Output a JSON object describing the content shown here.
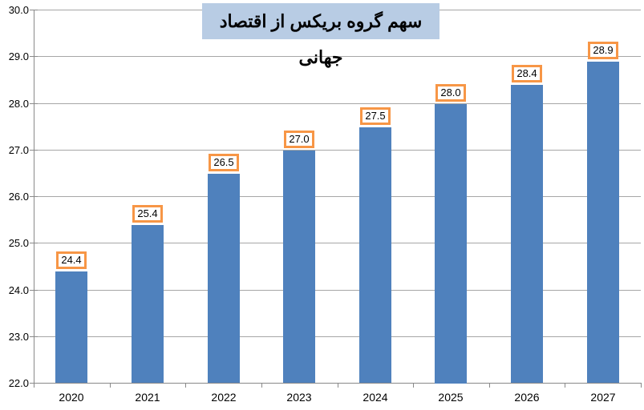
{
  "chart_data": {
    "type": "bar",
    "title": "سهم گروه بریکس از اقتصاد جهانی",
    "categories": [
      "2020",
      "2021",
      "2022",
      "2023",
      "2024",
      "2025",
      "2026",
      "2027"
    ],
    "values": [
      24.4,
      25.4,
      26.5,
      27.0,
      27.5,
      28.0,
      28.4,
      28.9
    ],
    "data_labels": [
      "24.4",
      "25.4",
      "26.5",
      "27.0",
      "27.5",
      "28.0",
      "28.4",
      "28.9"
    ],
    "xlabel": "",
    "ylabel": "",
    "ylim": [
      22.0,
      30.0
    ],
    "ytick_step": 1.0,
    "ytick_labels": [
      "22.0",
      "23.0",
      "24.0",
      "25.0",
      "26.0",
      "27.0",
      "28.0",
      "29.0",
      "30.0"
    ],
    "grid": true,
    "legend": "none"
  },
  "colors": {
    "bar_fill": "#4F81BD",
    "data_label_border": "#F79646",
    "data_label_bg": "#FFFFFF",
    "data_label_text": "#000000",
    "title_bg": "#B8CCE4",
    "title_text": "#000000",
    "gridline": "#A6A6A6",
    "axis_line": "#898989",
    "tick_text": "#000000",
    "background": "#FFFFFF"
  }
}
